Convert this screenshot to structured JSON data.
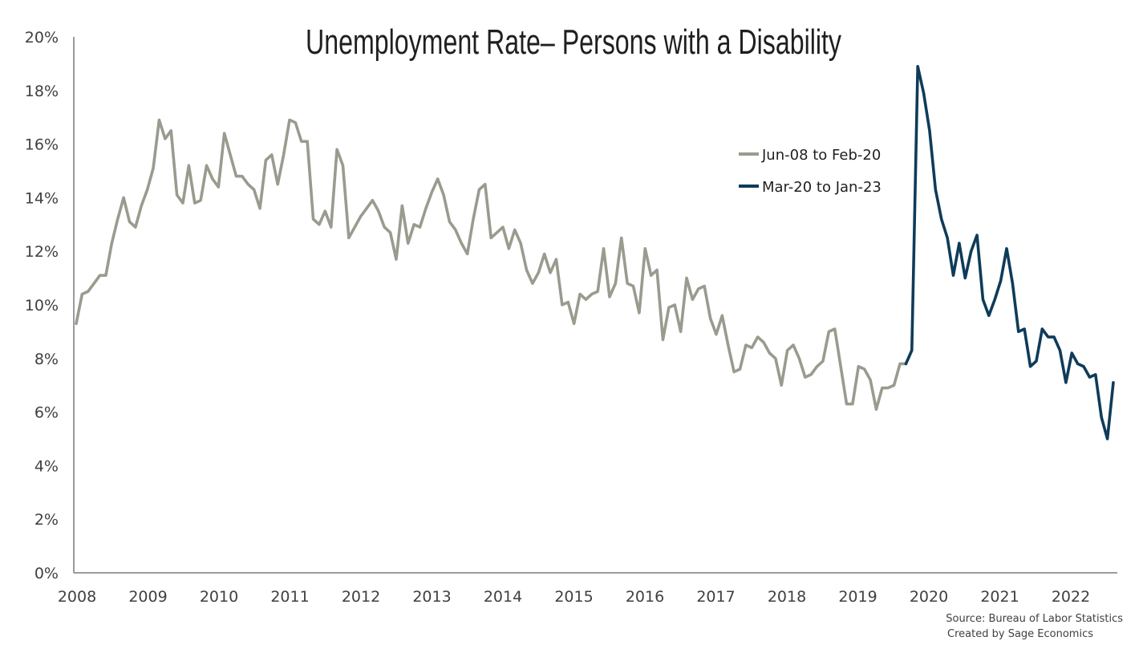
{
  "chart_data": {
    "type": "line",
    "title": "Unemployment Rate– Persons with a Disability",
    "xlabel": "",
    "ylabel": "",
    "y_tick_labels": [
      "0%",
      "2%",
      "4%",
      "6%",
      "8%",
      "10%",
      "12%",
      "14%",
      "16%",
      "18%",
      "20%"
    ],
    "x_tick_labels": [
      "2008",
      "2009",
      "2010",
      "2011",
      "2012",
      "2013",
      "2014",
      "2015",
      "2016",
      "2017",
      "2018",
      "2019",
      "2020",
      "2021",
      "2022"
    ],
    "ylim": [
      0,
      20
    ],
    "grid": false,
    "legend_position": "top-right",
    "series": [
      {
        "name": "Jun-08 to Feb-20",
        "color": "#9a9a8e",
        "values": [
          9.3,
          10.4,
          10.5,
          10.8,
          11.1,
          11.1,
          12.3,
          13.2,
          14.0,
          13.1,
          12.9,
          13.7,
          14.3,
          15.1,
          16.9,
          16.2,
          16.5,
          14.1,
          13.8,
          15.2,
          13.8,
          13.9,
          15.2,
          14.7,
          14.4,
          16.4,
          15.6,
          14.8,
          14.8,
          14.5,
          14.3,
          13.6,
          15.4,
          15.6,
          14.5,
          15.6,
          16.9,
          16.8,
          16.1,
          16.1,
          13.2,
          13.0,
          13.5,
          12.9,
          15.8,
          15.2,
          12.5,
          12.9,
          13.3,
          13.6,
          13.9,
          13.5,
          12.9,
          12.7,
          11.7,
          13.7,
          12.3,
          13.0,
          12.9,
          13.6,
          14.2,
          14.7,
          14.1,
          13.1,
          12.8,
          12.3,
          11.9,
          13.2,
          14.3,
          14.5,
          12.5,
          12.7,
          12.9,
          12.1,
          12.8,
          12.3,
          11.3,
          10.8,
          11.2,
          11.9,
          11.2,
          11.7,
          10.0,
          10.1,
          9.3,
          10.4,
          10.2,
          10.4,
          10.5,
          12.1,
          10.3,
          10.8,
          12.5,
          10.8,
          10.7,
          9.7,
          12.1,
          11.1,
          11.3,
          8.7,
          9.9,
          10.0,
          9.0,
          11.0,
          10.2,
          10.6,
          10.7,
          9.5,
          8.9,
          9.6,
          8.5,
          7.5,
          7.6,
          8.5,
          8.4,
          8.8,
          8.6,
          8.2,
          8.0,
          7.0,
          8.3,
          8.5,
          8.0,
          7.3,
          7.4,
          7.7,
          7.9,
          9.0,
          9.1,
          7.7,
          6.3,
          6.3,
          7.7,
          7.6,
          7.2,
          6.1,
          6.9,
          6.9,
          7.0,
          7.8,
          7.8
        ]
      },
      {
        "name": "Mar-20 to Jan-23",
        "color": "#0f3b5a",
        "values": [
          7.8,
          8.3,
          18.9,
          17.9,
          16.5,
          14.3,
          13.2,
          12.5,
          11.1,
          12.3,
          11.0,
          12.0,
          12.6,
          10.2,
          9.6,
          10.2,
          10.9,
          12.1,
          10.8,
          9.0,
          9.1,
          7.7,
          7.9,
          9.1,
          8.8,
          8.8,
          8.3,
          7.1,
          8.2,
          7.8,
          7.7,
          7.3,
          7.4,
          5.8,
          5.0,
          7.1
        ]
      }
    ],
    "source_lines": [
      "Source: Bureau of Labor Statistics",
      "Created by Sage Economics"
    ]
  }
}
